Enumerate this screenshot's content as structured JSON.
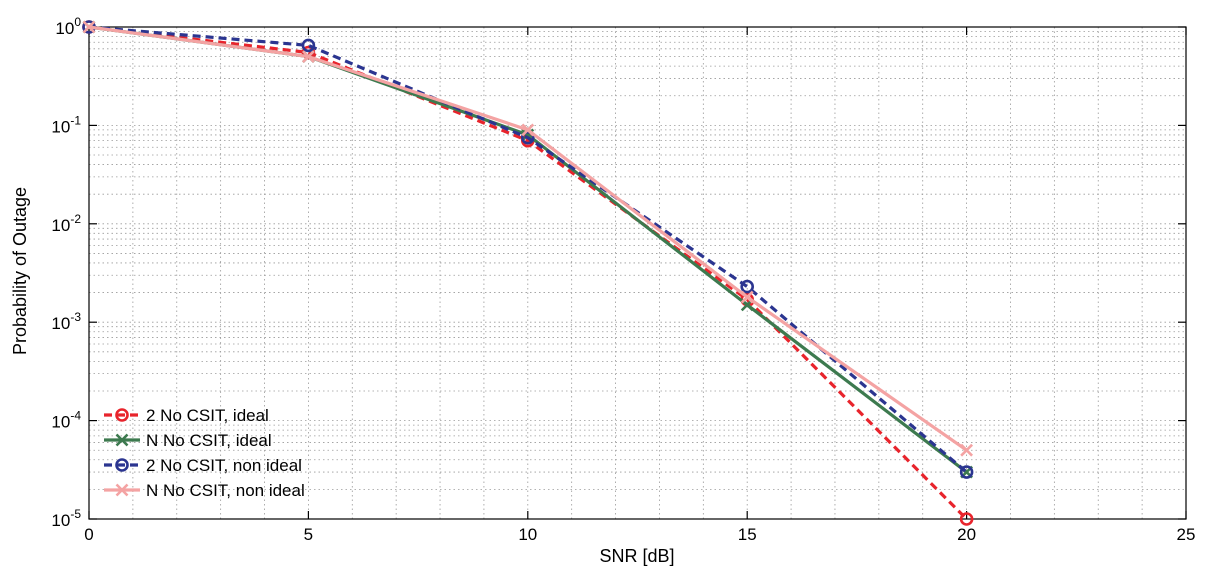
{
  "chart_data": {
    "type": "line",
    "title": "",
    "xlabel": "SNR [dB]",
    "ylabel": "Probability of Outage",
    "xlim": [
      0,
      25
    ],
    "ylim": [
      1e-05,
      1
    ],
    "yscale": "log",
    "grid": true,
    "legend_position": "bottom-left",
    "x_ticks": [
      0,
      5,
      10,
      15,
      20,
      25
    ],
    "x_tick_labels": [
      "0",
      "5",
      "10",
      "15",
      "20",
      "25"
    ],
    "y_ticks": [
      {
        "value": 1,
        "base": "10",
        "exp": "0"
      },
      {
        "value": 0.1,
        "base": "10",
        "exp": "-1"
      },
      {
        "value": 0.01,
        "base": "10",
        "exp": "-2"
      },
      {
        "value": 0.001,
        "base": "10",
        "exp": "-3"
      },
      {
        "value": 0.0001,
        "base": "10",
        "exp": "-4"
      },
      {
        "value": 1e-05,
        "base": "10",
        "exp": "-5"
      }
    ],
    "x": [
      0,
      5,
      10,
      15,
      20
    ],
    "series": [
      {
        "name": "2 No CSIT, ideal",
        "color": "#e8242c",
        "dash": "dashed",
        "marker": "circle",
        "values": [
          1.0,
          0.55,
          0.07,
          0.0017,
          1e-05
        ]
      },
      {
        "name": "N No CSIT, ideal",
        "color": "#3d7a4f",
        "dash": "solid",
        "marker": "x",
        "values": [
          1.0,
          0.5,
          0.08,
          0.0015,
          3e-05
        ]
      },
      {
        "name": "2 No CSIT, non ideal",
        "color": "#2b3590",
        "dash": "dashed",
        "marker": "circle",
        "values": [
          1.0,
          0.65,
          0.075,
          0.0023,
          3e-05
        ]
      },
      {
        "name": "N No CSIT, non ideal",
        "color": "#f4a3a3",
        "dash": "solid",
        "marker": "x",
        "values": [
          1.0,
          0.5,
          0.09,
          0.0018,
          5e-05
        ]
      }
    ]
  }
}
